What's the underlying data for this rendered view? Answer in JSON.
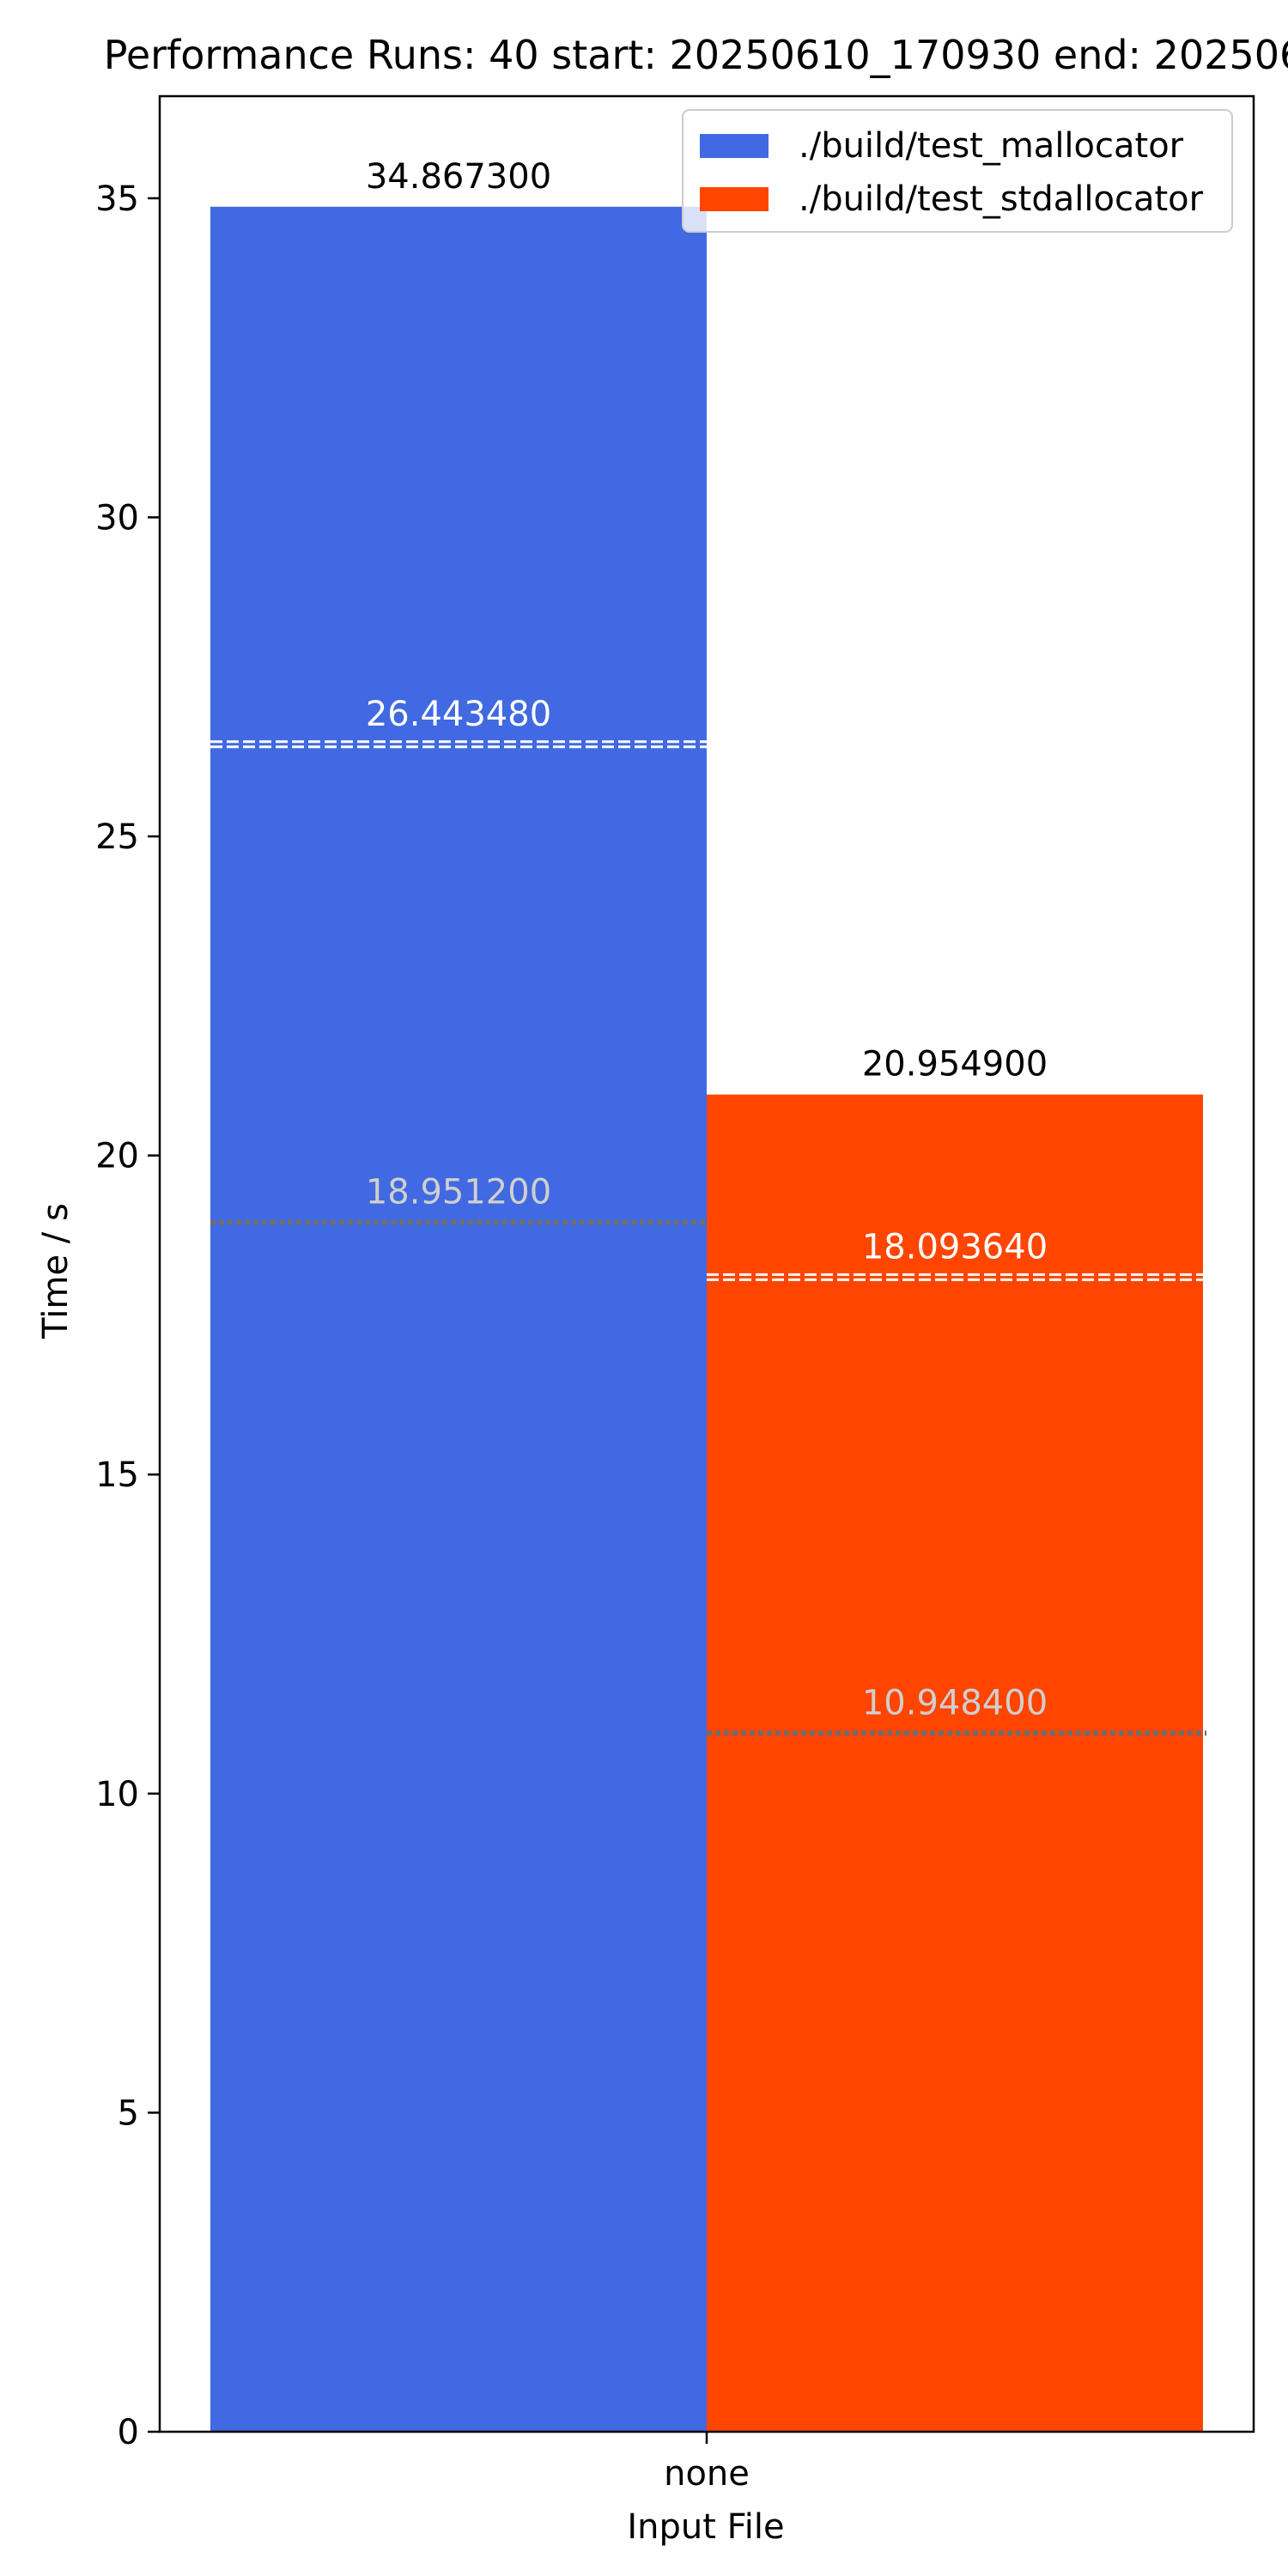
{
  "chart_data": {
    "type": "bar",
    "title": "Performance Runs: 40 start: 20250610_170930 end: 202506",
    "xlabel": "Input File",
    "ylabel": "Time / s",
    "categories": [
      "none"
    ],
    "ylim": [
      0,
      36.6
    ],
    "yticks": [
      0,
      5,
      10,
      15,
      20,
      25,
      30,
      35
    ],
    "grid": false,
    "legend_position": "top-right",
    "series": [
      {
        "name": "./build/test_mallocator",
        "color": "#4169e1",
        "max": 34.8673,
        "max_label": "34.867300",
        "mean": 26.44348,
        "mean_label": "26.443480",
        "min": 18.9512,
        "min_label": "18.951200"
      },
      {
        "name": "./build/test_stdallocator",
        "color": "#ff4500",
        "max": 20.9549,
        "max_label": "20.954900",
        "mean": 18.09364,
        "mean_label": "18.093640",
        "min": 10.9484,
        "min_label": "10.948400"
      }
    ]
  }
}
